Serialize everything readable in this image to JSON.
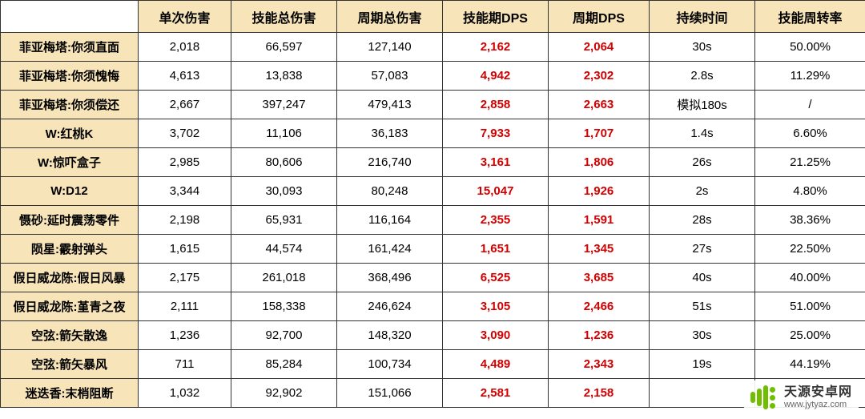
{
  "colors": {
    "header_bg": "#f7e5b9",
    "border": "#333333",
    "red_text": "#d40000",
    "black_text": "#000000",
    "logo_green": "#6fbf00"
  },
  "columns": [
    "",
    "单次伤害",
    "技能总伤害",
    "周期总伤害",
    "技能期DPS",
    "周期DPS",
    "持续时间",
    "技能周转率"
  ],
  "column_widths": [
    "172px",
    "116px",
    "132px",
    "132px",
    "132px",
    "126px",
    "132px",
    "138px"
  ],
  "red_columns": [
    4,
    5
  ],
  "rows": [
    {
      "name": "菲亚梅塔:你须直面",
      "cells": [
        "2,018",
        "66,597",
        "127,140",
        "2,162",
        "2,064",
        "30s",
        "50.00%"
      ]
    },
    {
      "name": "菲亚梅塔:你须愧悔",
      "cells": [
        "4,613",
        "13,838",
        "57,083",
        "4,942",
        "2,302",
        "2.8s",
        "11.29%"
      ]
    },
    {
      "name": "菲亚梅塔:你须偿还",
      "cells": [
        "2,667",
        "397,247",
        "479,413",
        "2,858",
        "2,663",
        "模拟180s",
        "/"
      ]
    },
    {
      "name": "W:红桃K",
      "cells": [
        "3,702",
        "11,106",
        "36,183",
        "7,933",
        "1,707",
        "1.4s",
        "6.60%"
      ]
    },
    {
      "name": "W:惊吓盒子",
      "cells": [
        "2,985",
        "80,606",
        "216,740",
        "3,161",
        "1,806",
        "26s",
        "21.25%"
      ]
    },
    {
      "name": "W:D12",
      "cells": [
        "3,344",
        "30,093",
        "80,248",
        "15,047",
        "1,926",
        "2s",
        "4.80%"
      ]
    },
    {
      "name": "慑砂:延时震荡零件",
      "cells": [
        "2,198",
        "65,931",
        "116,164",
        "2,355",
        "1,591",
        "28s",
        "38.36%"
      ]
    },
    {
      "name": "陨星:霰射弹头",
      "cells": [
        "1,615",
        "44,574",
        "161,424",
        "1,651",
        "1,345",
        "27s",
        "22.50%"
      ]
    },
    {
      "name": "假日威龙陈:假日风暴",
      "cells": [
        "2,175",
        "261,018",
        "368,496",
        "6,525",
        "3,685",
        "40s",
        "40.00%"
      ]
    },
    {
      "name": "假日威龙陈:堇青之夜",
      "cells": [
        "2,111",
        "158,338",
        "246,624",
        "3,105",
        "2,466",
        "51s",
        "51.00%"
      ]
    },
    {
      "name": "空弦:箭矢散逸",
      "cells": [
        "1,236",
        "92,700",
        "148,320",
        "3,090",
        "1,236",
        "30s",
        "25.00%"
      ]
    },
    {
      "name": "空弦:箭矢暴风",
      "cells": [
        "711",
        "85,284",
        "100,734",
        "4,489",
        "2,343",
        "19s",
        "44.19%"
      ]
    },
    {
      "name": "迷迭香:末梢阻断",
      "cells": [
        "1,032",
        "92,902",
        "151,066",
        "2,581",
        "2,158",
        "",
        ""
      ]
    }
  ],
  "watermark": {
    "title": "天源安卓网",
    "url": "www.jytyaz.com"
  }
}
